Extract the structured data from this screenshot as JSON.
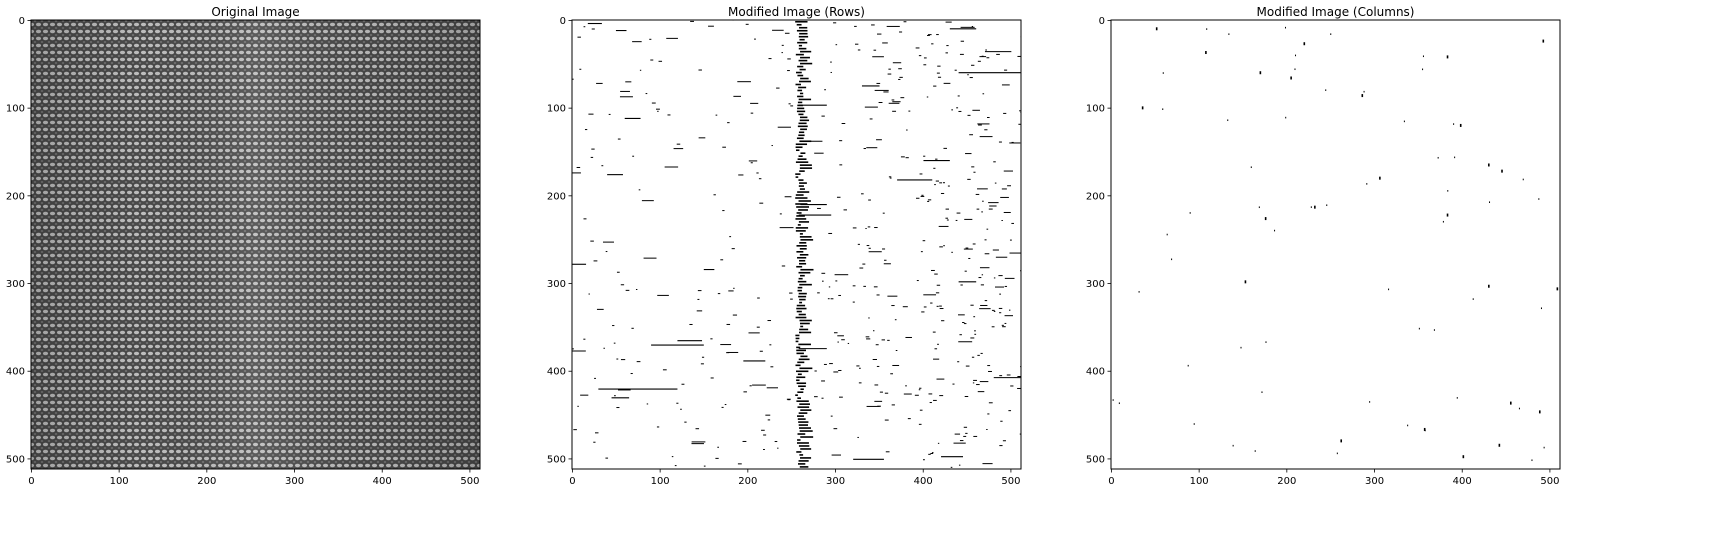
{
  "figure": {
    "panels": [
      {
        "title": "Original Image",
        "image": "original-texture-image",
        "xticks": [
          0,
          100,
          200,
          300,
          400,
          500
        ],
        "yticks": [
          0,
          100,
          200,
          300,
          400,
          500
        ],
        "xlim": [
          -0.5,
          511.5
        ],
        "ylim": [
          511.5,
          -0.5
        ]
      },
      {
        "title": "Modified Image (Rows)",
        "image": "row-modified-image",
        "xticks": [
          0,
          100,
          200,
          300,
          400,
          500
        ],
        "yticks": [
          0,
          100,
          200,
          300,
          400,
          500
        ],
        "xlim": [
          -0.5,
          511.5
        ],
        "ylim": [
          511.5,
          -0.5
        ]
      },
      {
        "title": "Modified Image (Columns)",
        "image": "column-modified-image",
        "xticks": [
          0,
          100,
          200,
          300,
          400,
          500
        ],
        "yticks": [
          0,
          100,
          200,
          300,
          400,
          500
        ],
        "xlim": [
          -0.5,
          511.5
        ],
        "ylim": [
          511.5,
          -0.5
        ]
      }
    ]
  },
  "chart_data": [
    {
      "type": "heatmap",
      "title": "Original Image",
      "xlabel": "",
      "ylabel": "",
      "xlim": [
        0,
        511
      ],
      "ylim": [
        511,
        0
      ],
      "grid": false,
      "colormap": "gray"
    },
    {
      "type": "heatmap",
      "title": "Modified Image (Rows)",
      "xlabel": "",
      "ylabel": "",
      "xlim": [
        0,
        511
      ],
      "ylim": [
        511,
        0
      ],
      "grid": false,
      "colormap": "binary",
      "dense_band_x": [
        254,
        275
      ],
      "segments": [
        {
          "y": 4,
          "x0": 18,
          "x1": 34
        },
        {
          "y": 12,
          "x0": 50,
          "x1": 62
        },
        {
          "y": 10,
          "x0": 430,
          "x1": 460
        },
        {
          "y": 36,
          "x0": 470,
          "x1": 500
        },
        {
          "y": 60,
          "x0": 440,
          "x1": 511
        },
        {
          "y": 75,
          "x0": 330,
          "x1": 350
        },
        {
          "y": 97,
          "x0": 258,
          "x1": 290
        },
        {
          "y": 112,
          "x0": 60,
          "x1": 78
        },
        {
          "y": 138,
          "x0": 260,
          "x1": 285
        },
        {
          "y": 160,
          "x0": 400,
          "x1": 430
        },
        {
          "y": 176,
          "x0": 40,
          "x1": 58
        },
        {
          "y": 182,
          "x0": 370,
          "x1": 410
        },
        {
          "y": 210,
          "x0": 260,
          "x1": 290
        },
        {
          "y": 222,
          "x0": 258,
          "x1": 295
        },
        {
          "y": 278,
          "x0": 0,
          "x1": 16
        },
        {
          "y": 284,
          "x0": 150,
          "x1": 162
        },
        {
          "y": 298,
          "x0": 440,
          "x1": 460
        },
        {
          "y": 365,
          "x0": 120,
          "x1": 148
        },
        {
          "y": 370,
          "x0": 90,
          "x1": 150
        },
        {
          "y": 374,
          "x0": 258,
          "x1": 290
        },
        {
          "y": 388,
          "x0": 195,
          "x1": 220
        },
        {
          "y": 407,
          "x0": 480,
          "x1": 511
        },
        {
          "y": 420,
          "x0": 30,
          "x1": 120
        },
        {
          "y": 430,
          "x0": 45,
          "x1": 65
        },
        {
          "y": 500,
          "x0": 320,
          "x1": 355
        },
        {
          "y": 497,
          "x0": 420,
          "x1": 445
        }
      ]
    },
    {
      "type": "heatmap",
      "title": "Modified Image (Columns)",
      "xlabel": "",
      "ylabel": "",
      "xlim": [
        0,
        511
      ],
      "ylim": [
        511,
        0
      ],
      "grid": false,
      "colormap": "binary",
      "points": [
        [
          52,
          10
        ],
        [
          108,
          37
        ],
        [
          170,
          60
        ],
        [
          205,
          66
        ],
        [
          286,
          86
        ],
        [
          430,
          165
        ],
        [
          445,
          172
        ],
        [
          176,
          226
        ],
        [
          232,
          213
        ],
        [
          153,
          298
        ],
        [
          430,
          303
        ],
        [
          357,
          466
        ],
        [
          442,
          484
        ],
        [
          401,
          497
        ],
        [
          508,
          306
        ],
        [
          220,
          27
        ],
        [
          492,
          24
        ],
        [
          383,
          42
        ],
        [
          398,
          120
        ],
        [
          306,
          180
        ],
        [
          383,
          222
        ],
        [
          262,
          479
        ],
        [
          36,
          100
        ],
        [
          488,
          446
        ],
        [
          455,
          436
        ]
      ]
    }
  ]
}
